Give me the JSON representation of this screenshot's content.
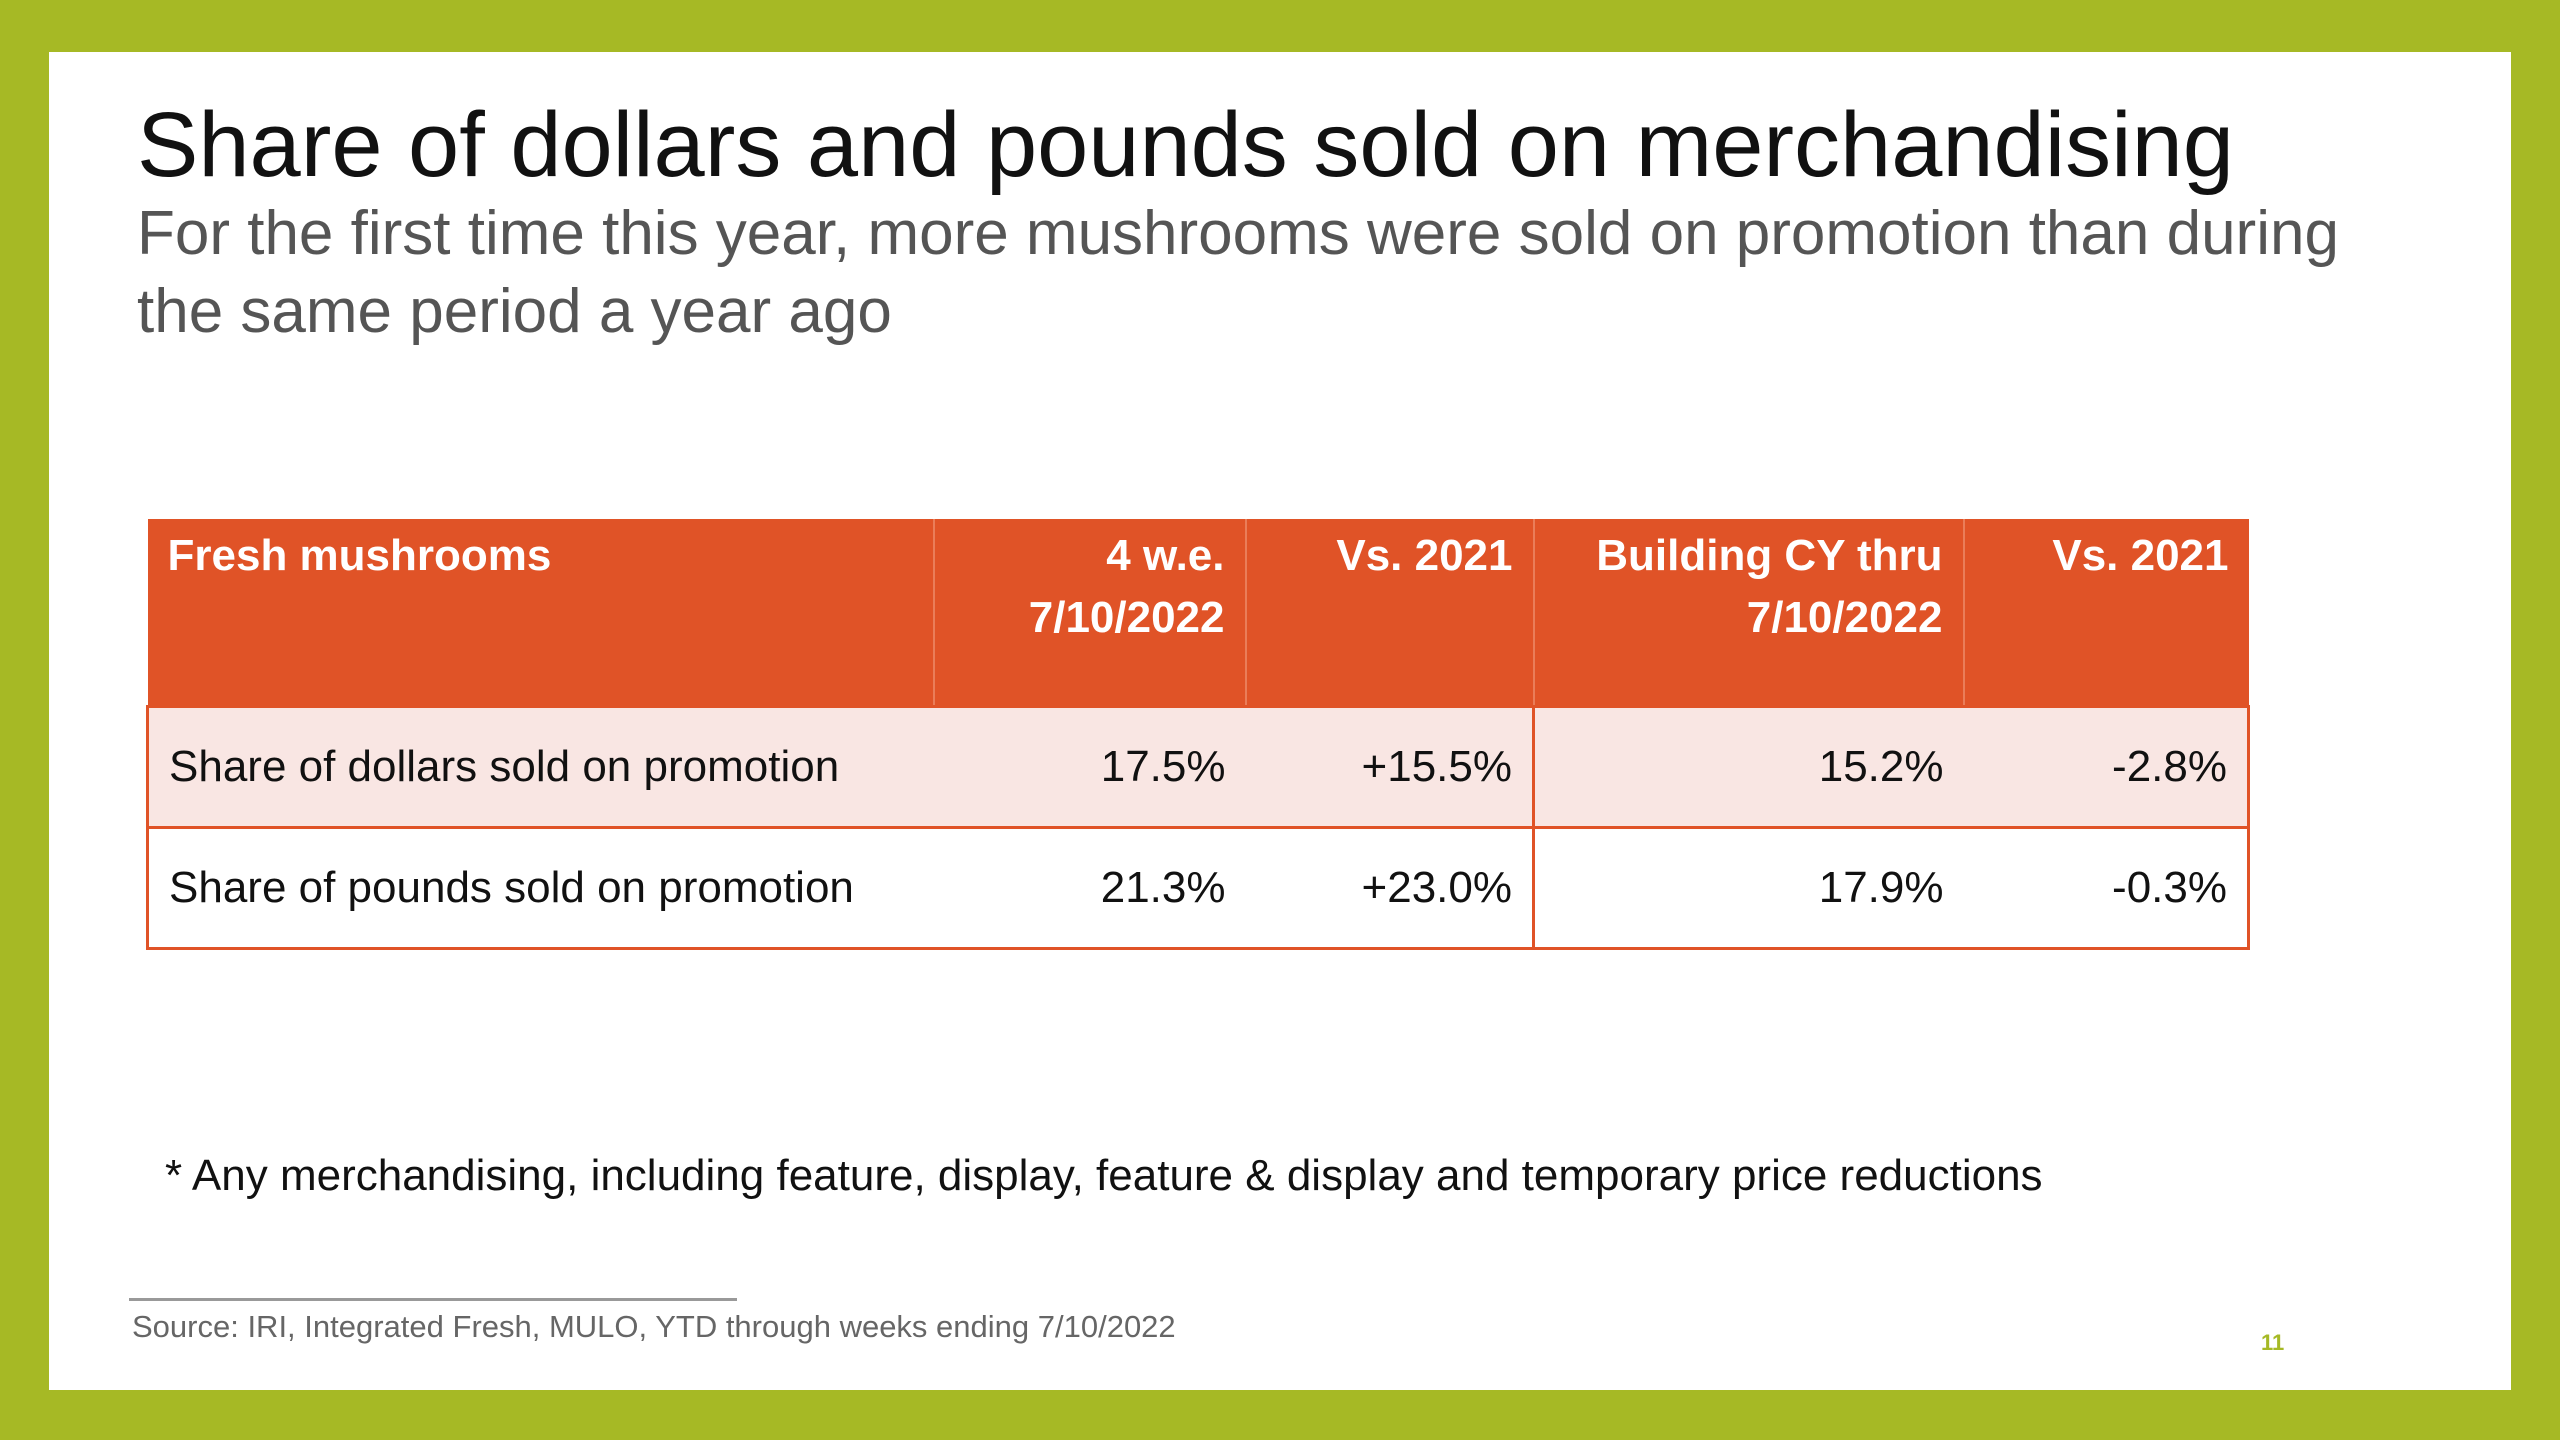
{
  "slide": {
    "title": "Share of dollars and pounds sold on merchandising",
    "subtitle": "For the first time this year, more mushrooms were sold on promotion than during the same period a year ago",
    "table": {
      "headers": [
        "Fresh mushrooms",
        "4 w.e.\n7/10/2022",
        "Vs. 2021",
        "Building CY thru\n7/10/2022",
        "Vs. 2021"
      ],
      "rows": [
        [
          "Share of dollars sold on promotion",
          "17.5%",
          "+15.5%",
          "15.2%",
          "-2.8%"
        ],
        [
          "Share of pounds sold on promotion",
          "21.3%",
          "+23.0%",
          "17.9%",
          "-0.3%"
        ]
      ]
    },
    "note": "* Any merchandising, including feature, display, feature & display and temporary price reductions",
    "source": "Source: IRI, Integrated Fresh, MULO, YTD through weeks ending 7/10/2022",
    "page_number": "11"
  },
  "colors": {
    "frame": "#a6b925",
    "header_fill": "#e05327",
    "row_tint": "#f9e6e3"
  }
}
